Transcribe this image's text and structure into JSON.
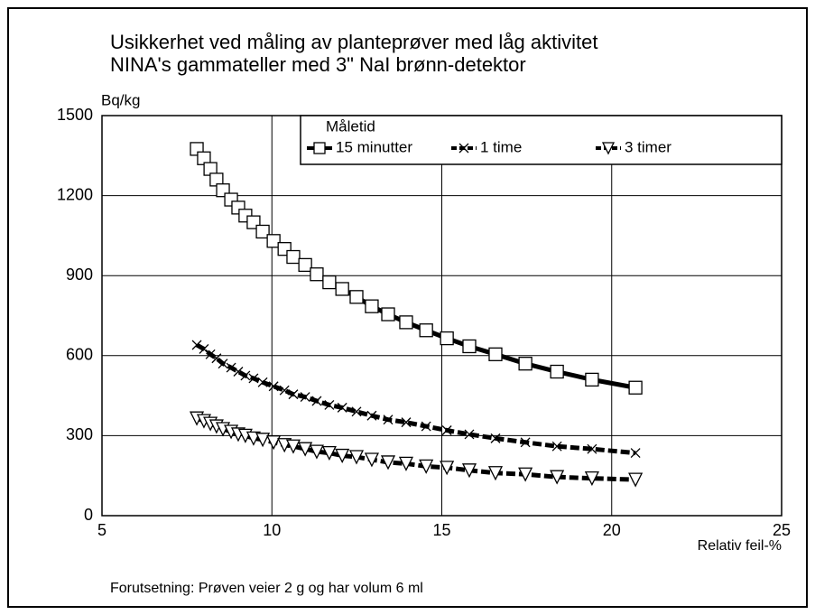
{
  "chart_data": {
    "type": "line",
    "title": [
      "Usikkerhet ved måling av planteprøver med låg aktivitet",
      "NINA's gammateller med 3\" NaI brønn-detektor"
    ],
    "y_label": "Bq/kg",
    "x_label": "Relativ feil-%",
    "footnote": "Forutsetning: Prøven veier 2 g og har volum 6 ml",
    "legend_title": "Måletid",
    "x": [
      7.79,
      8.0,
      8.19,
      8.37,
      8.56,
      8.8,
      9.01,
      9.22,
      9.46,
      9.73,
      10.05,
      10.37,
      10.63,
      10.98,
      11.32,
      11.69,
      12.07,
      12.49,
      12.94,
      13.42,
      13.95,
      14.54,
      15.15,
      15.81,
      16.58,
      17.46,
      18.39,
      19.42,
      20.7
    ],
    "series": [
      {
        "name": "15 minutter",
        "color": "#000000",
        "marker": "square",
        "values": [
          1375,
          1340,
          1300,
          1260,
          1220,
          1185,
          1155,
          1125,
          1100,
          1065,
          1030,
          1000,
          970,
          940,
          905,
          875,
          850,
          820,
          785,
          755,
          725,
          695,
          665,
          635,
          605,
          570,
          540,
          510,
          480
        ]
      },
      {
        "name": "1 time",
        "color": "#000000",
        "marker": "x",
        "values": [
          640,
          625,
          605,
          590,
          570,
          555,
          540,
          525,
          515,
          500,
          485,
          470,
          455,
          445,
          430,
          415,
          405,
          390,
          375,
          360,
          350,
          335,
          320,
          305,
          290,
          275,
          260,
          250,
          235
        ]
      },
      {
        "name": "3 timer",
        "color": "#000000",
        "marker": "triangle-down",
        "values": [
          365,
          355,
          345,
          335,
          325,
          315,
          305,
          300,
          290,
          285,
          275,
          265,
          260,
          250,
          240,
          235,
          225,
          220,
          210,
          200,
          195,
          185,
          180,
          170,
          160,
          155,
          145,
          140,
          135
        ]
      }
    ],
    "xlim": [
      5,
      25
    ],
    "xticks": [
      5,
      10,
      15,
      20,
      25
    ],
    "ylim": [
      0,
      1500
    ],
    "yticks": [
      0,
      300,
      600,
      900,
      1200,
      1500
    ],
    "grid": true,
    "legend": "top-right"
  }
}
